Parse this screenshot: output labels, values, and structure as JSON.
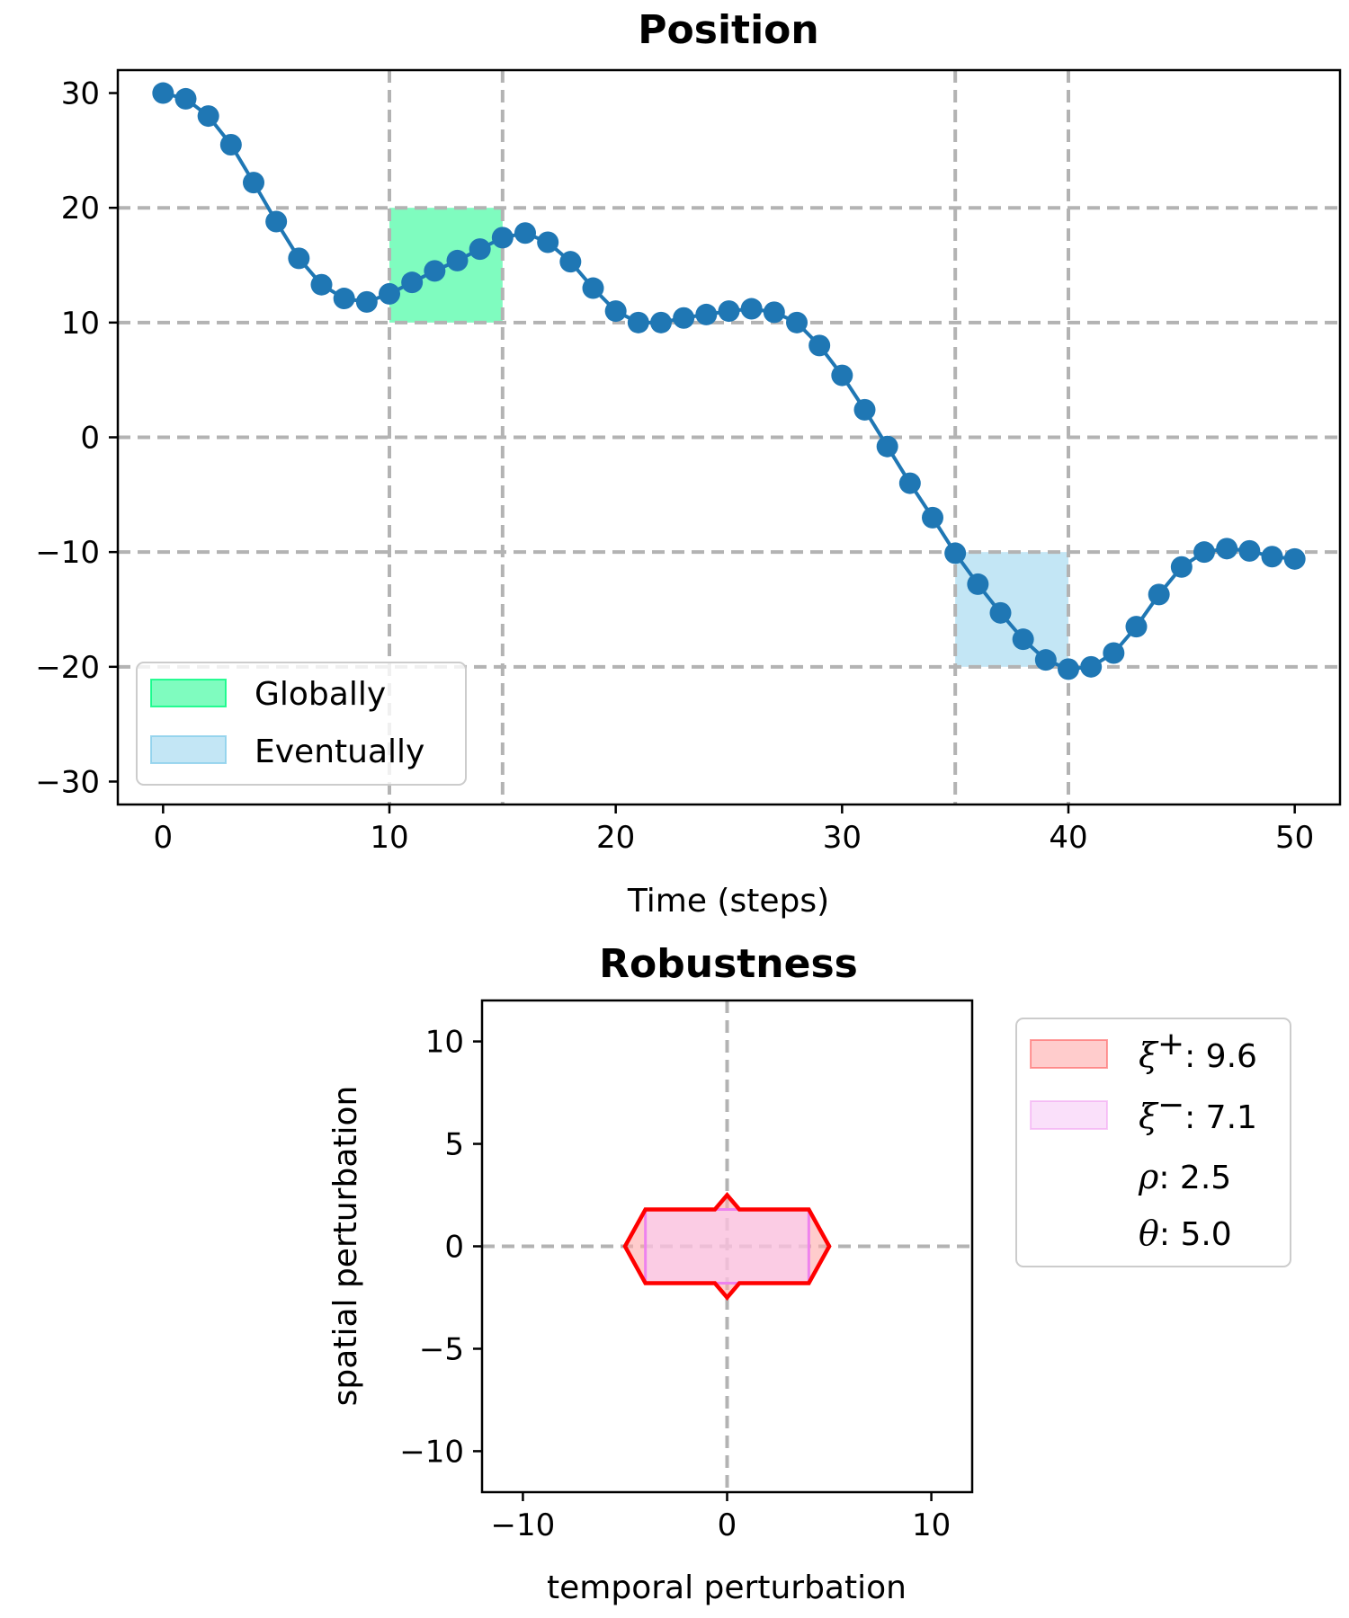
{
  "chart_data": [
    {
      "type": "line",
      "title": "Position",
      "xlabel": "Time (steps)",
      "ylabel": "",
      "xlim": [
        -2,
        52
      ],
      "ylim": [
        -32,
        32
      ],
      "xticks": [
        0,
        10,
        20,
        30,
        40,
        50
      ],
      "yticks": [
        30,
        20,
        10,
        0,
        -10,
        -20,
        -30
      ],
      "xtick_labels": [
        "0",
        "10",
        "20",
        "30",
        "40",
        "50"
      ],
      "ytick_labels": [
        "30",
        "20",
        "10",
        "0",
        "−10",
        "−20",
        "−30"
      ],
      "grid": true,
      "legend_position": "lower-left",
      "series": [
        {
          "color": "#1f77b4",
          "marker": "circle",
          "x": [
            0,
            1,
            2,
            3,
            4,
            5,
            6,
            7,
            8,
            9,
            10,
            11,
            12,
            13,
            14,
            15,
            16,
            17,
            18,
            19,
            20,
            21,
            22,
            23,
            24,
            25,
            26,
            27,
            28,
            29,
            30,
            31,
            32,
            33,
            34,
            35,
            36,
            37,
            38,
            39,
            40,
            41,
            42,
            43,
            44,
            45,
            46,
            47,
            48,
            49,
            50
          ],
          "y": [
            30.0,
            29.5,
            28.0,
            25.5,
            22.2,
            18.8,
            15.6,
            13.3,
            12.1,
            11.8,
            12.5,
            13.5,
            14.5,
            15.4,
            16.4,
            17.4,
            17.8,
            17.0,
            15.3,
            13.0,
            11.0,
            10.0,
            10.0,
            10.4,
            10.7,
            11.0,
            11.2,
            10.9,
            10.0,
            8.0,
            5.4,
            2.4,
            -0.8,
            -4.0,
            -7.0,
            -10.1,
            -12.8,
            -15.3,
            -17.6,
            -19.4,
            -20.2,
            -20.0,
            -18.8,
            -16.5,
            -13.7,
            -11.3,
            -10.0,
            -9.7,
            -9.9,
            -10.4,
            -10.6
          ]
        }
      ],
      "shaded_regions": [
        {
          "label": "Globally",
          "x_range": [
            10,
            15
          ],
          "y_range": [
            10,
            20
          ],
          "color": "#00fa80"
        },
        {
          "label": "Eventually",
          "x_range": [
            35,
            40
          ],
          "y_range": [
            -20,
            -10
          ],
          "color": "#87ceeb"
        }
      ],
      "vlines": [
        10,
        15,
        35,
        40
      ],
      "hlines": [
        20,
        10,
        0,
        -10,
        -20
      ]
    },
    {
      "type": "area",
      "title": "Robustness",
      "xlabel": "temporal perturbation",
      "ylabel": "spatial perturbation",
      "xlim": [
        -12,
        12
      ],
      "ylim": [
        -12,
        12
      ],
      "xticks": [
        -10,
        0,
        10
      ],
      "yticks": [
        10,
        5,
        0,
        -5,
        -10
      ],
      "xtick_labels": [
        "−10",
        "0",
        "10"
      ],
      "ytick_labels": [
        "10",
        "5",
        "0",
        "−5",
        "−10"
      ],
      "grid": false,
      "legend_position": "outside-right",
      "series": [
        {
          "name": "ξ⁺",
          "color": "#ff0000",
          "fill": "#ffaaaa",
          "polygon": [
            [
              -5.0,
              0.0
            ],
            [
              -4.0,
              1.8
            ],
            [
              0.0,
              1.8
            ],
            [
              0.0,
              2.5
            ],
            [
              0.0,
              1.8
            ],
            [
              4.0,
              1.8
            ],
            [
              5.0,
              0.0
            ],
            [
              4.0,
              -1.8
            ],
            [
              0.0,
              -1.8
            ],
            [
              0.0,
              -2.5
            ],
            [
              0.0,
              -1.8
            ],
            [
              -4.0,
              -1.8
            ]
          ],
          "outline": [
            [
              -5.0,
              0.0
            ],
            [
              -4.0,
              1.8
            ],
            [
              -0.6,
              1.8
            ],
            [
              0.0,
              2.5
            ],
            [
              0.6,
              1.8
            ],
            [
              4.0,
              1.8
            ],
            [
              5.0,
              0.0
            ],
            [
              4.0,
              -1.8
            ],
            [
              0.6,
              -1.8
            ],
            [
              0.0,
              -2.5
            ],
            [
              -0.6,
              -1.8
            ],
            [
              -4.0,
              -1.8
            ]
          ]
        },
        {
          "name": "ξ⁻",
          "color": "#ee82ee",
          "fill": "#f7ccf7",
          "polygon": [
            [
              -4.0,
              -1.8
            ],
            [
              4.0,
              -1.8
            ],
            [
              4.0,
              1.8
            ],
            [
              -4.0,
              1.8
            ]
          ]
        }
      ],
      "legend": {
        "xi_plus_symbol": "ξ",
        "xi_plus_sup": "+",
        "xi_plus_value": ": 9.6",
        "xi_minus_symbol": "ξ",
        "xi_minus_sup": "−",
        "xi_minus_value": ": 7.1",
        "rho_symbol": "ρ",
        "rho_value": ": 2.5",
        "theta_symbol": "θ",
        "theta_value": ": 5.0"
      },
      "vlines": [
        0
      ],
      "hlines": [
        0
      ]
    }
  ]
}
